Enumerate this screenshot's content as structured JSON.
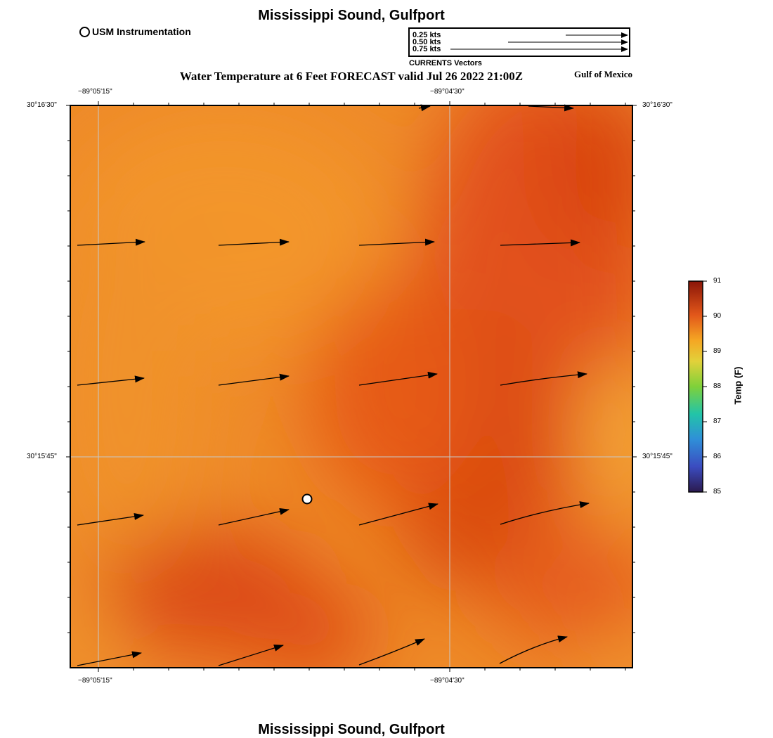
{
  "title": "Mississippi Sound, Gulfport",
  "footer_title": "Mississippi Sound, Gulfport",
  "subtitle": "Water Temperature at 6 Feet FORECAST valid Jul 26 2022 21:00Z",
  "region": "Gulf of Mexico",
  "station_legend": {
    "label": "USM Instrumentation"
  },
  "vector_legend": {
    "caption": "CURRENTS Vectors",
    "scales": [
      "0.25 kts",
      "0.50 kts",
      "0.75 kts"
    ]
  },
  "map": {
    "lon_labels": [
      "−89°05'15\"",
      "−89°04'30\""
    ],
    "lat_labels": [
      "30°16'30\"",
      "30°15'45\""
    ]
  },
  "colorbar": {
    "title": "Temp (F)",
    "ticks": [
      "91",
      "90",
      "89",
      "88",
      "87",
      "86",
      "85"
    ]
  },
  "colors": {
    "warm_orange": "#f0922a",
    "mid_orange": "#e8621a",
    "hot_red": "#d9480f",
    "cool_yellow": "#f5ab38",
    "frame": "#000000",
    "grid": "#c8c8c8"
  }
}
